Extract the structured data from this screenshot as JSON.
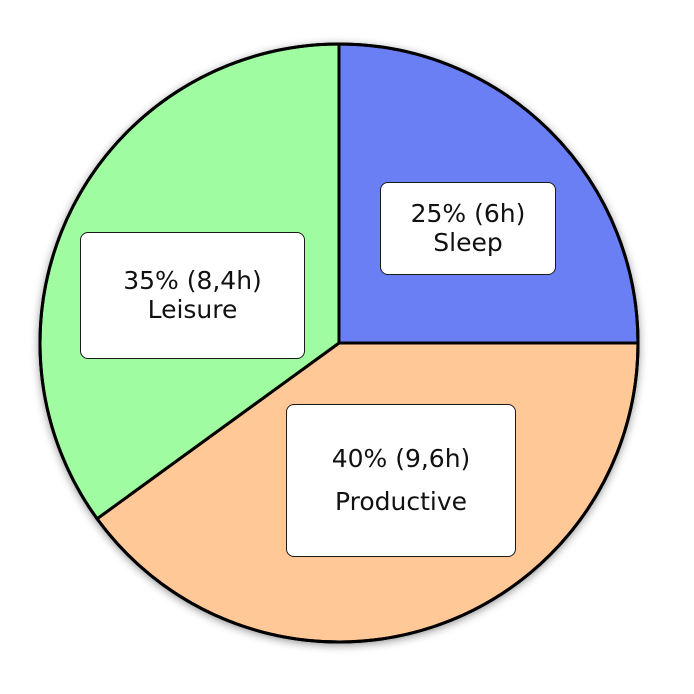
{
  "chart_data": {
    "type": "pie",
    "slices": [
      {
        "label": "Sleep",
        "value": 25,
        "hours": 6,
        "value_text": "25% (6h)",
        "color": "#6b7ff5"
      },
      {
        "label": "Productive",
        "value": 40,
        "hours": 9.6,
        "value_text": "40% (9,6h)",
        "color": "#ffc896"
      },
      {
        "label": "Leisure",
        "value": 35,
        "hours": 8.4,
        "value_text": "35% (8,4h)",
        "color": "#a0fca0"
      }
    ],
    "start_angle": "12 o'clock",
    "direction": "clockwise",
    "outline_color": "#000000"
  }
}
